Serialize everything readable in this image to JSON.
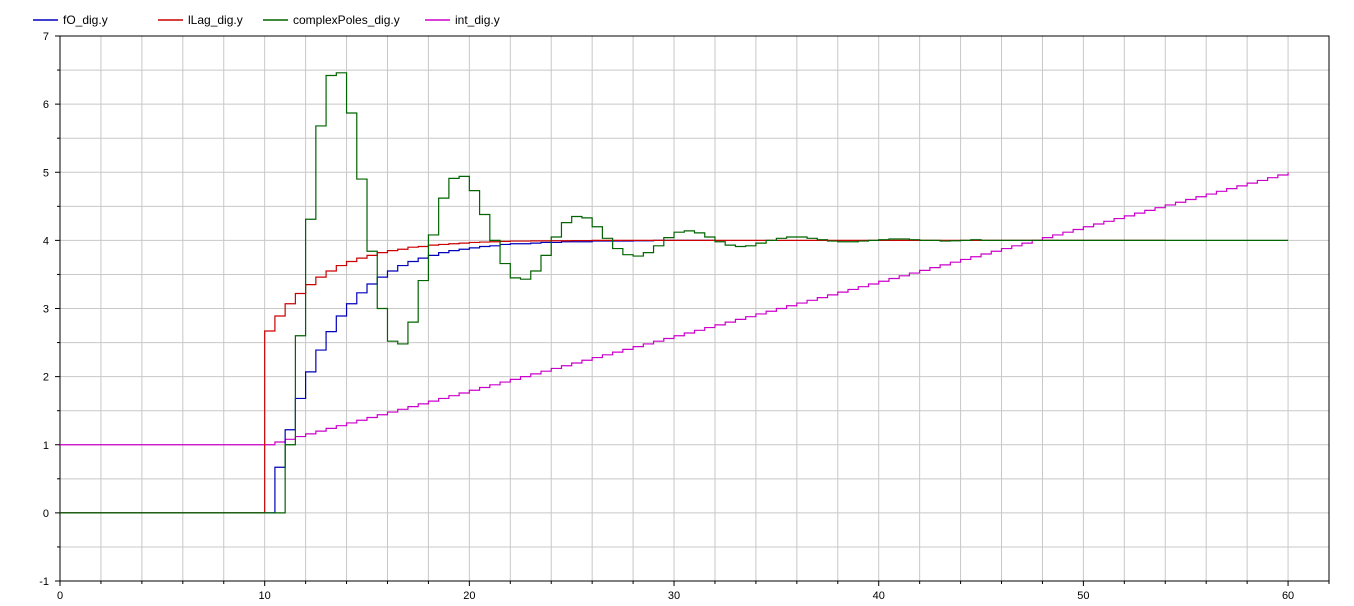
{
  "chart_data": {
    "type": "line",
    "step": true,
    "xlim": [
      0,
      62
    ],
    "ylim": [
      -1,
      7
    ],
    "x_ticks": [
      0,
      10,
      20,
      30,
      40,
      50,
      60
    ],
    "y_ticks": [
      -1,
      0,
      1,
      2,
      3,
      4,
      5,
      6,
      7
    ],
    "grid": true,
    "legend_position": "top-left",
    "series": [
      {
        "name": "fO_dig.y",
        "color": "#0000bb",
        "x": [
          0,
          10.5,
          11,
          11.5,
          12,
          12.5,
          13,
          13.5,
          14,
          14.5,
          15,
          15.5,
          16,
          16.5,
          17,
          17.5,
          18,
          18.5,
          19,
          19.5,
          20,
          20.5,
          21,
          21.5,
          22,
          22.5,
          23,
          23.5,
          24,
          24.5,
          25,
          26,
          27,
          28,
          29,
          30,
          31,
          32
        ],
        "y": [
          0,
          0.67,
          1.22,
          1.68,
          2.07,
          2.39,
          2.66,
          2.89,
          3.07,
          3.23,
          3.36,
          3.46,
          3.55,
          3.63,
          3.69,
          3.74,
          3.78,
          3.82,
          3.85,
          3.87,
          3.89,
          3.91,
          3.92,
          3.94,
          3.95,
          3.95,
          3.96,
          3.97,
          3.97,
          3.98,
          3.98,
          3.99,
          3.99,
          3.995,
          4,
          4,
          4,
          4
        ]
      },
      {
        "name": "lLag_dig.y",
        "color": "#cc0000",
        "x": [
          0,
          10,
          10.5,
          11,
          11.5,
          12,
          12.5,
          13,
          13.5,
          14,
          14.5,
          15,
          15.5,
          16,
          16.5,
          17,
          17.5,
          18,
          18.5,
          19,
          19.5,
          20,
          20.5,
          21,
          21.5,
          22,
          23,
          24,
          25,
          26,
          28,
          30,
          35,
          40,
          45,
          50,
          54
        ],
        "y": [
          0,
          2.67,
          2.89,
          3.07,
          3.22,
          3.35,
          3.46,
          3.55,
          3.63,
          3.69,
          3.74,
          3.78,
          3.82,
          3.85,
          3.87,
          3.9,
          3.91,
          3.93,
          3.94,
          3.95,
          3.96,
          3.97,
          3.975,
          3.98,
          3.985,
          3.99,
          3.993,
          3.995,
          3.997,
          4,
          4,
          4,
          4,
          4,
          4,
          4,
          4
        ]
      },
      {
        "name": "complexPoles_dig.y",
        "color": "#006400",
        "x": [
          0,
          11,
          11.5,
          12,
          12.5,
          13,
          13.5,
          14,
          14.5,
          15,
          15.5,
          16,
          16.5,
          17,
          17.5,
          18,
          18.5,
          19,
          19.5,
          20,
          20.5,
          21,
          21.5,
          22,
          22.5,
          23,
          23.5,
          24,
          24.5,
          25,
          25.5,
          26,
          26.5,
          27,
          27.5,
          28,
          28.5,
          29,
          29.5,
          30,
          30.5,
          31,
          31.5,
          32,
          32.5,
          33,
          33.5,
          34,
          34.5,
          35,
          35.5,
          36,
          36.5,
          37,
          37.5,
          38,
          38.5,
          39,
          39.5,
          40,
          40.5,
          41,
          41.5,
          42,
          42.5,
          43,
          43.5,
          44,
          44.5,
          45,
          46,
          48,
          50,
          54,
          60
        ],
        "y": [
          0,
          1.0,
          2.6,
          4.31,
          5.68,
          6.42,
          6.46,
          5.87,
          4.9,
          3.84,
          3.0,
          2.52,
          2.48,
          2.8,
          3.41,
          4.08,
          4.62,
          4.91,
          4.94,
          4.73,
          4.38,
          4.0,
          3.66,
          3.45,
          3.43,
          3.55,
          3.78,
          4.05,
          4.26,
          4.35,
          4.33,
          4.2,
          4.03,
          3.88,
          3.79,
          3.77,
          3.82,
          3.92,
          4.04,
          4.12,
          4.14,
          4.11,
          4.05,
          3.98,
          3.93,
          3.91,
          3.92,
          3.96,
          4.0,
          4.03,
          4.05,
          4.05,
          4.03,
          4.01,
          3.99,
          3.98,
          3.98,
          3.99,
          4.0,
          4.01,
          4.02,
          4.02,
          4.01,
          4.0,
          4.0,
          3.99,
          3.995,
          4.0,
          4.01,
          4.0,
          4.0,
          4.0,
          4.0,
          4.0,
          4.0
        ]
      },
      {
        "name": "int_dig.y",
        "color": "#cc00cc",
        "x_start": 10,
        "x_end": 60,
        "x_step": 0.5,
        "y_before": 1,
        "y_start": 1,
        "y_end": 5
      }
    ]
  }
}
